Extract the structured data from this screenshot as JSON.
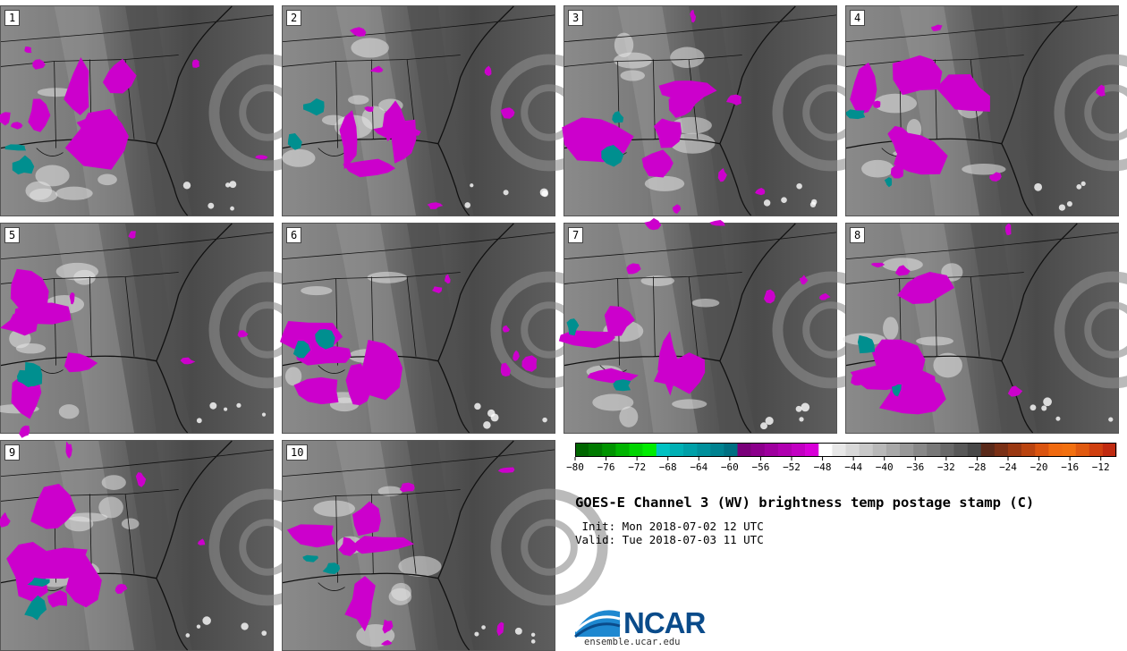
{
  "title": "GOES-E Channel 3 (WV) brightness temp postage stamp (C)",
  "init_line": " Init: Mon 2018-07-02 12 UTC",
  "valid_line": "Valid: Tue 2018-07-03 11 UTC",
  "logo_text": "NCAR",
  "logo_url": "ensemble.ucar.edu",
  "members": [
    "1",
    "2",
    "3",
    "4",
    "5",
    "6",
    "7",
    "8",
    "9",
    "10"
  ],
  "colorbar": {
    "tick_labels": [
      "−80",
      "−76",
      "−72",
      "−68",
      "−64",
      "−60",
      "−56",
      "−52",
      "−48",
      "−44",
      "−40",
      "−36",
      "−32",
      "−28",
      "−24",
      "−20",
      "−16",
      "−12"
    ],
    "min": -80,
    "max": -10,
    "colors": [
      "#006600",
      "#007a00",
      "#009400",
      "#00b400",
      "#00d400",
      "#00ec00",
      "#00c2c2",
      "#00b0b4",
      "#00a0a8",
      "#00909c",
      "#008290",
      "#007082",
      "#7a007a",
      "#8c008c",
      "#9e009e",
      "#b000b0",
      "#c200c2",
      "#d800d8",
      "#ffffff",
      "#e8e8e8",
      "#d8d8d8",
      "#c8c8c8",
      "#b8b8b8",
      "#a8a8a8",
      "#989898",
      "#888888",
      "#787878",
      "#686868",
      "#585858",
      "#484848",
      "#5a2a1a",
      "#7a3016",
      "#9a3812",
      "#ba4410",
      "#da5410",
      "#f06a10",
      "#f27010",
      "#e05a10",
      "#d04010",
      "#c02a10"
    ]
  },
  "colors": {
    "magenta": "#cc00cc",
    "teal": "#008f8f",
    "dark_sea": "#4a4a4a",
    "mid_gray": "#707070",
    "light_gray": "#a8a8a8",
    "boundary": "#111111"
  }
}
